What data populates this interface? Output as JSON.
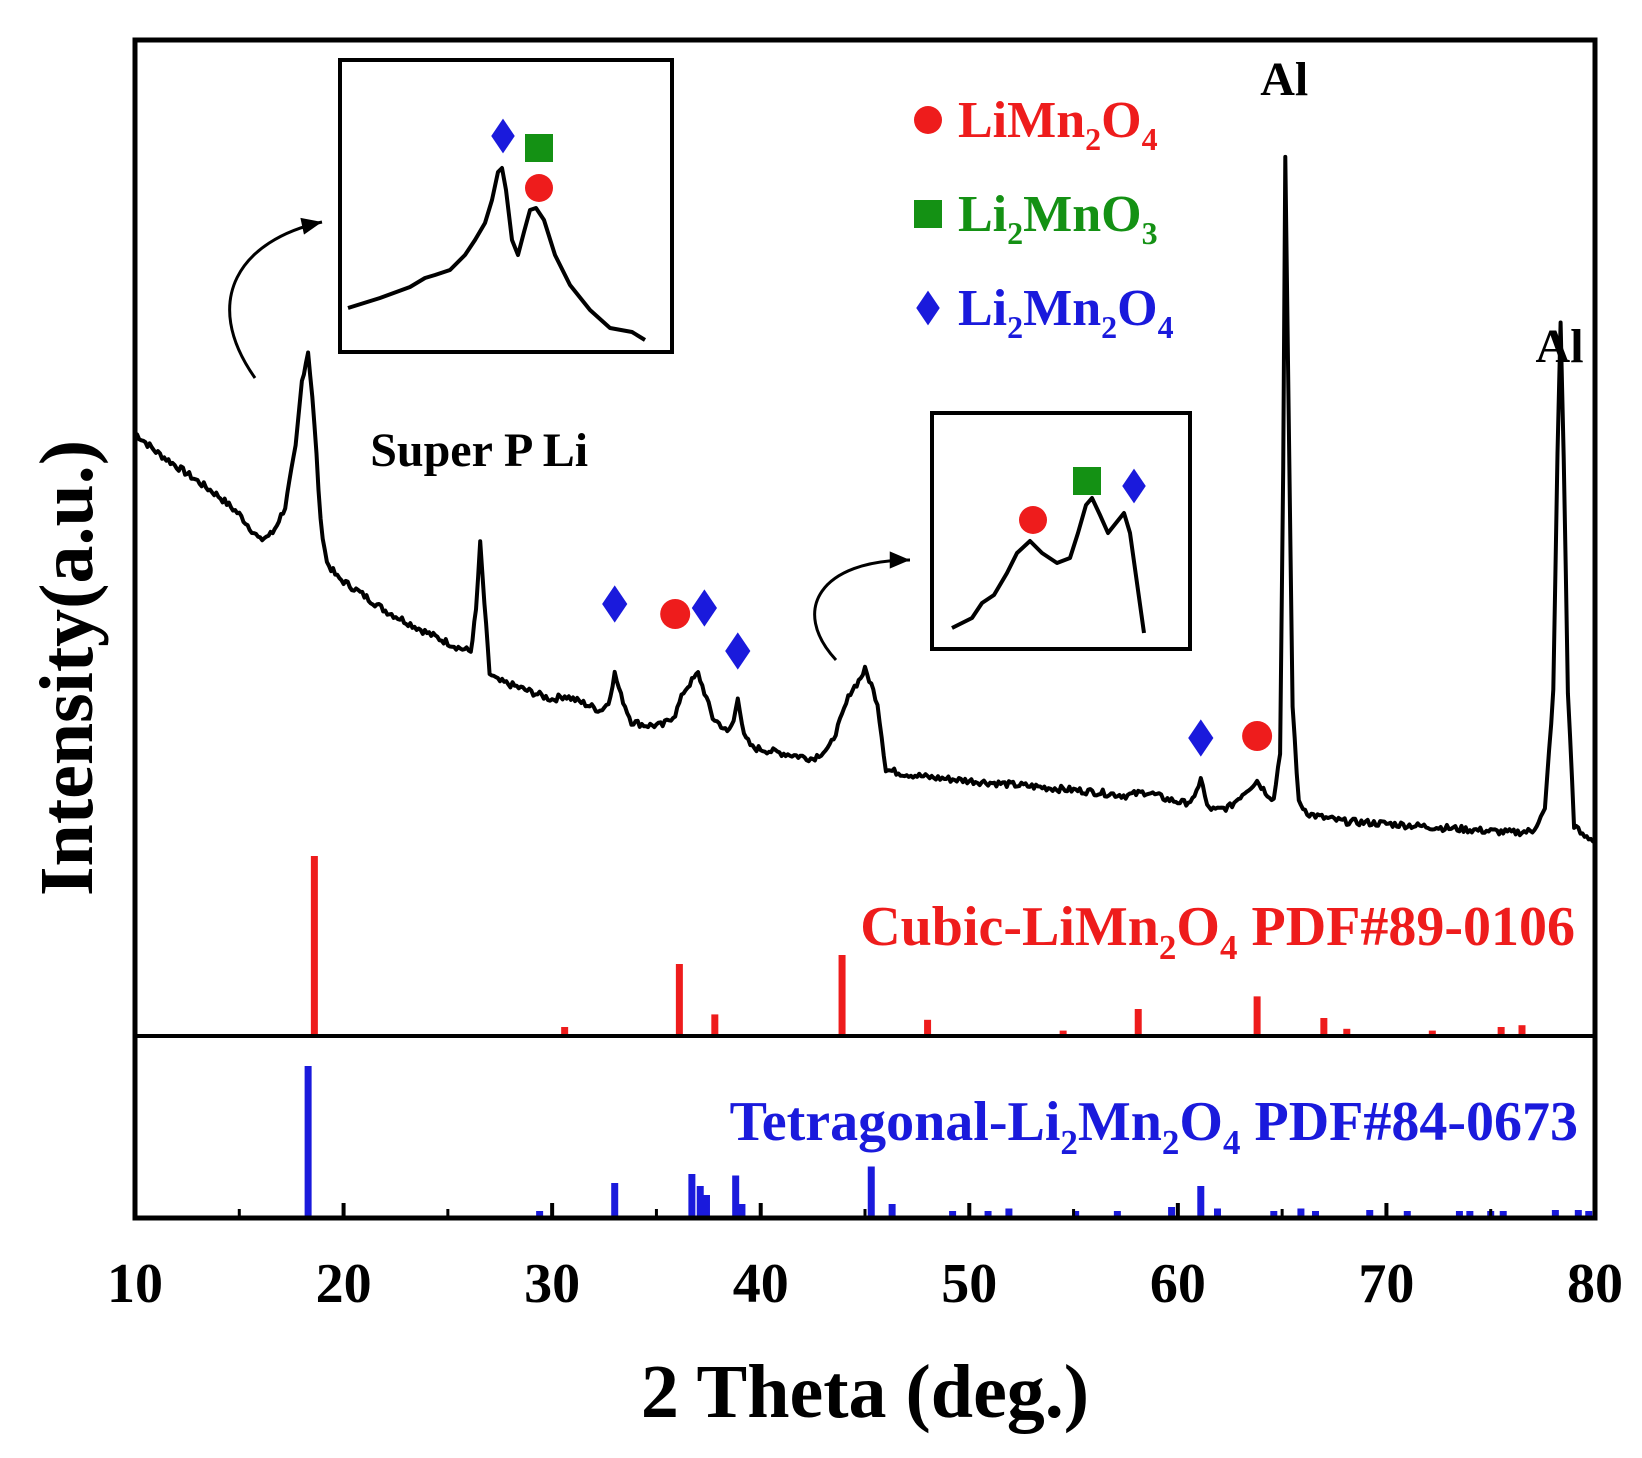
{
  "chart_data": {
    "type": "line",
    "title": "",
    "xlabel": "2 Theta (deg.)",
    "ylabel": "Intensity(a.u.)",
    "xlim": [
      10,
      80
    ],
    "xticks": [
      10,
      20,
      30,
      40,
      50,
      60,
      70,
      80
    ],
    "xtick_labels": [
      "10",
      "20",
      "30",
      "40",
      "50",
      "60",
      "70",
      "80"
    ],
    "grid": false,
    "colors": {
      "pattern": "#000000",
      "limn2o4": "#ee1c1c",
      "li2mno3": "#149114",
      "li2mn2o4": "#1a1adc"
    },
    "pattern": {
      "name": "XRD pattern",
      "ylim": [
        0,
        1
      ],
      "x": [
        10,
        11,
        12,
        13,
        14,
        15,
        16,
        16.6,
        17.2,
        17.7,
        18.0,
        18.3,
        18.5,
        18.7,
        18.9,
        19.2,
        19.7,
        20.5,
        22,
        24,
        25.5,
        26.1,
        26.35,
        26.55,
        26.75,
        27.0,
        27.4,
        28,
        29,
        30,
        30.6,
        31.5,
        32.3,
        32.7,
        33.0,
        33.3,
        33.8,
        34.5,
        35.3,
        35.9,
        36.3,
        36.7,
        37.0,
        37.3,
        37.7,
        38.1,
        38.4,
        38.7,
        38.9,
        39.2,
        39.6,
        40.5,
        41.5,
        42.5,
        43.3,
        43.8,
        44.3,
        44.7,
        45.0,
        45.3,
        45.6,
        46.0,
        46.8,
        48,
        50,
        52,
        54,
        56,
        57.5,
        58.5,
        59.5,
        60.3,
        60.8,
        61.1,
        61.4,
        61.8,
        62.5,
        63.2,
        63.8,
        64.2,
        64.6,
        64.9,
        65.05,
        65.15,
        65.3,
        65.5,
        65.8,
        66.3,
        67,
        68,
        70,
        72,
        74,
        76,
        77,
        77.6,
        78.0,
        78.2,
        78.35,
        78.5,
        78.7,
        79.0,
        79.4,
        80
      ],
      "y": [
        0.55,
        0.525,
        0.505,
        0.485,
        0.465,
        0.44,
        0.405,
        0.415,
        0.45,
        0.53,
        0.62,
        0.66,
        0.6,
        0.52,
        0.43,
        0.375,
        0.355,
        0.34,
        0.31,
        0.28,
        0.26,
        0.255,
        0.31,
        0.4,
        0.32,
        0.225,
        0.215,
        0.21,
        0.2,
        0.19,
        0.195,
        0.185,
        0.175,
        0.185,
        0.225,
        0.195,
        0.16,
        0.155,
        0.155,
        0.17,
        0.2,
        0.215,
        0.225,
        0.2,
        0.165,
        0.155,
        0.145,
        0.16,
        0.195,
        0.14,
        0.125,
        0.12,
        0.115,
        0.11,
        0.125,
        0.16,
        0.2,
        0.215,
        0.23,
        0.21,
        0.185,
        0.095,
        0.09,
        0.085,
        0.08,
        0.075,
        0.07,
        0.065,
        0.06,
        0.065,
        0.055,
        0.05,
        0.055,
        0.085,
        0.045,
        0.04,
        0.045,
        0.065,
        0.08,
        0.065,
        0.055,
        0.12,
        0.5,
        0.92,
        0.6,
        0.18,
        0.05,
        0.035,
        0.03,
        0.025,
        0.022,
        0.018,
        0.014,
        0.01,
        0.012,
        0.04,
        0.2,
        0.52,
        0.7,
        0.52,
        0.2,
        0.02,
        0.006,
        0.0
      ]
    },
    "pattern_labels": [
      {
        "text": "Al",
        "x": 65.1
      },
      {
        "text": "Al",
        "x": 78.3
      },
      {
        "text": "Super P Li",
        "x": 26.5
      }
    ],
    "legend": [
      {
        "symbol": "circle",
        "color_key": "limn2o4",
        "base": "LiMn",
        "sub1": "2",
        "mid": "O",
        "sub2": "4"
      },
      {
        "symbol": "square",
        "color_key": "li2mno3",
        "base": "Li",
        "sub1": "2",
        "mid": "MnO",
        "sub2": "3"
      },
      {
        "symbol": "diamond",
        "color_key": "li2mn2o4",
        "base": "Li",
        "sub1": "2",
        "mid": "Mn",
        "sub2": "2",
        "tail": "O",
        "sub3": "4"
      }
    ],
    "peak_markers": [
      {
        "symbol": "diamond",
        "x": 33.0
      },
      {
        "symbol": "circle",
        "x": 35.9
      },
      {
        "symbol": "diamond",
        "x": 37.3
      },
      {
        "symbol": "diamond",
        "x": 38.9
      },
      {
        "symbol": "diamond",
        "x": 61.1
      },
      {
        "symbol": "circle",
        "x": 63.8
      }
    ],
    "reference_patterns": [
      {
        "name": "Cubic-LiMn2O4 PDF#89-0106",
        "label_parts": [
          "Cubic-LiMn",
          "2",
          "O",
          "4",
          " PDF#89-0106"
        ],
        "color_key": "limn2o4",
        "x": [
          18.6,
          30.6,
          36.1,
          37.8,
          43.9,
          48.0,
          54.5,
          58.1,
          63.8,
          67.0,
          68.1,
          72.2,
          75.5,
          76.5
        ],
        "intensity": [
          100,
          5,
          40,
          12,
          45,
          9,
          3,
          15,
          22,
          10,
          4,
          3,
          5,
          6
        ]
      },
      {
        "name": "Tetragonal-Li2Mn2O4 PDF#84-0673",
        "label_parts": [
          "Tetragonal-Li",
          "2",
          "Mn",
          "2",
          "O",
          "4",
          " PDF#84-0673"
        ],
        "color_key": "li2mn2o4",
        "x": [
          18.3,
          29.4,
          33.0,
          36.7,
          37.1,
          37.4,
          38.8,
          39.1,
          45.3,
          46.3,
          49.2,
          50.9,
          51.9,
          55.1,
          57.1,
          59.7,
          61.1,
          61.9,
          64.6,
          65.9,
          66.6,
          69.2,
          71.0,
          73.5,
          74.0,
          75.0,
          75.6,
          78.1,
          79.2,
          79.7
        ],
        "intensity": [
          100,
          2,
          22,
          28,
          20,
          14,
          27,
          8,
          33,
          8,
          3,
          3,
          5,
          2,
          3,
          6,
          20,
          5,
          2,
          5,
          3,
          4,
          2,
          3,
          2,
          2,
          3,
          4,
          4,
          3
        ]
      }
    ],
    "insets": [
      {
        "position": "top-left",
        "peaks": [
          {
            "symbol": "diamond"
          },
          {
            "symbol": "square"
          },
          {
            "symbol": "circle"
          }
        ]
      },
      {
        "position": "middle-right",
        "peaks": [
          {
            "symbol": "circle"
          },
          {
            "symbol": "square"
          },
          {
            "symbol": "diamond"
          }
        ]
      }
    ]
  }
}
